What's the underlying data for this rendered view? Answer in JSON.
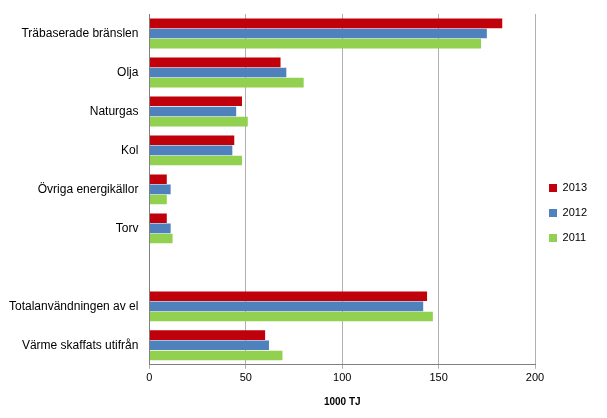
{
  "chart_data": {
    "type": "bar",
    "orientation": "horizontal",
    "categories": [
      "Träbaserade bränslen",
      "Olja",
      "Naturgas",
      "Kol",
      "Övriga energikällor",
      "Torv",
      null,
      "Totalanvändningen av el",
      "Värme skaffats utifrån"
    ],
    "series": [
      {
        "name": "2013",
        "color": "#c0000b",
        "values": [
          183,
          68,
          48,
          44,
          9,
          9,
          null,
          144,
          60
        ]
      },
      {
        "name": "2012",
        "color": "#4f81bd",
        "values": [
          175,
          71,
          45,
          43,
          11,
          11,
          null,
          142,
          62
        ]
      },
      {
        "name": "2011",
        "color": "#92d050",
        "values": [
          172,
          80,
          51,
          48,
          9,
          12,
          null,
          147,
          69
        ]
      }
    ],
    "x_label": "1000 TJ",
    "xlim": [
      0,
      200
    ],
    "xticks": [
      0,
      50,
      100,
      150,
      200
    ],
    "grid": true,
    "legend": "right"
  }
}
